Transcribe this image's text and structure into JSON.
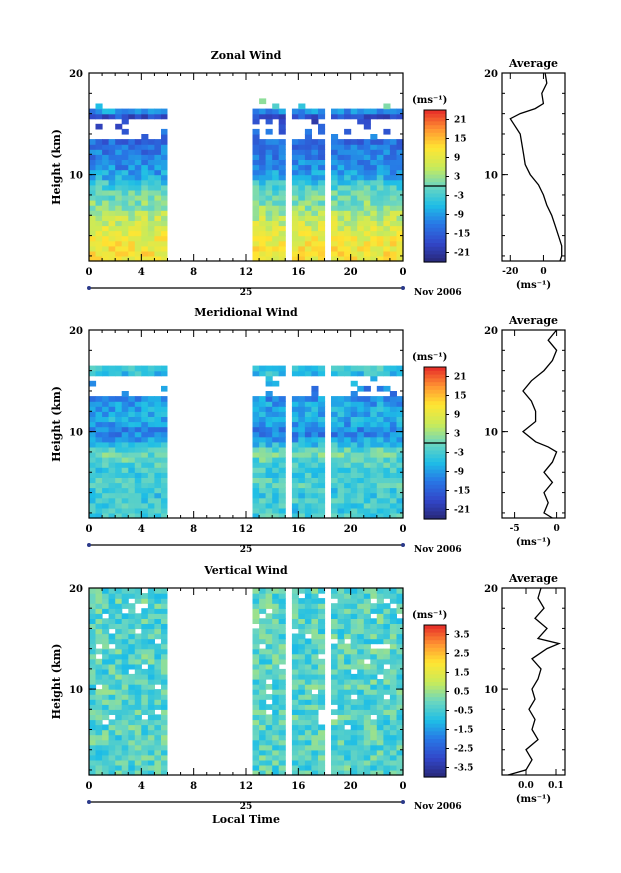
{
  "chart_data": [
    {
      "type": "heatmap",
      "title": "Zonal Wind",
      "ylabel": "Height (km)",
      "y_ticks": [
        "20",
        "10"
      ],
      "ylim": [
        1.5,
        20
      ],
      "x_ticks": [
        "0",
        "4",
        "8",
        "12",
        "16",
        "20",
        "0"
      ],
      "xlim": [
        0,
        24
      ],
      "date_label": "25",
      "month_label": "Nov 2006",
      "gaps_hours": [
        [
          6,
          12.3
        ],
        [
          15.2,
          15.5
        ],
        [
          18.1,
          18.4
        ]
      ],
      "data_top_km": 17.5,
      "colorbar": {
        "unit": "(ms⁻¹)",
        "ticks": [
          "21",
          "15",
          "9",
          "3",
          "-3",
          "-9",
          "-15",
          "-21"
        ],
        "range": [
          -24,
          24
        ],
        "zero_line": 0
      },
      "profile": {
        "title": "Average",
        "x_ticks": [
          "-20",
          "0"
        ],
        "xlim": [
          -25,
          13
        ],
        "unit": "(ms⁻¹)",
        "heights_km": [
          1.5,
          2,
          3,
          4,
          5,
          6,
          7,
          8,
          9,
          10,
          11,
          12,
          13,
          14,
          15,
          15.5,
          16,
          16.5,
          17,
          18,
          19,
          20
        ],
        "values": [
          10,
          11,
          11,
          9,
          7,
          5,
          2,
          0,
          -3,
          -8,
          -11,
          -12,
          -13,
          -14,
          -18,
          -20,
          -14,
          -5,
          0,
          -1,
          2,
          1
        ]
      }
    },
    {
      "type": "heatmap",
      "title": "Meridional Wind",
      "ylabel": "Height (km)",
      "y_ticks": [
        "20",
        "10"
      ],
      "ylim": [
        1.5,
        20
      ],
      "x_ticks": [
        "0",
        "4",
        "8",
        "12",
        "16",
        "20",
        "0"
      ],
      "xlim": [
        0,
        24
      ],
      "date_label": "25",
      "month_label": "Nov 2006",
      "gaps_hours": [
        [
          6,
          12.3
        ],
        [
          15.2,
          15.5
        ],
        [
          18.1,
          18.4
        ]
      ],
      "data_top_km": 16.5,
      "colorbar": {
        "unit": "(ms⁻¹)",
        "ticks": [
          "21",
          "15",
          "9",
          "3",
          "-3",
          "-9",
          "-15",
          "-21"
        ],
        "range": [
          -24,
          24
        ],
        "zero_line": 0
      },
      "profile": {
        "title": "Average",
        "x_ticks": [
          "-5",
          "0"
        ],
        "xlim": [
          -6.5,
          1
        ],
        "unit": "(ms⁻¹)",
        "heights_km": [
          1.5,
          2,
          3,
          4,
          5,
          6,
          7,
          8,
          8.5,
          9,
          10,
          11,
          12,
          13,
          14,
          15,
          16,
          17,
          18,
          19,
          20
        ],
        "values": [
          -0.5,
          -1.5,
          -1,
          -1.5,
          -0.5,
          -1.5,
          -0.5,
          0,
          -1,
          -2.5,
          -4,
          -2.5,
          -2.5,
          -3,
          -4,
          -3,
          -1.5,
          -0.5,
          0,
          -1,
          0
        ]
      }
    },
    {
      "type": "heatmap",
      "title": "Vertical Wind",
      "ylabel": "Height (km)",
      "xlabel": "Local Time",
      "y_ticks": [
        "20",
        "10"
      ],
      "ylim": [
        1.5,
        20
      ],
      "x_ticks": [
        "0",
        "4",
        "8",
        "12",
        "16",
        "20",
        "0"
      ],
      "xlim": [
        0,
        24
      ],
      "date_label": "25",
      "month_label": "Nov 2006",
      "gaps_hours": [
        [
          6,
          12.3
        ],
        [
          15.2,
          15.5
        ],
        [
          18.1,
          18.4
        ]
      ],
      "data_top_km": 20,
      "colorbar": {
        "unit": "(ms⁻¹)",
        "ticks": [
          "3.5",
          "2.5",
          "1.5",
          "0.5",
          "-0.5",
          "-1.5",
          "-2.5",
          "-3.5"
        ],
        "range": [
          -4,
          4
        ],
        "zero_line": null
      },
      "profile": {
        "title": "Average",
        "x_ticks": [
          "0.0",
          "0.1"
        ],
        "xlim": [
          -0.08,
          0.13
        ],
        "unit": "(ms⁻¹)",
        "heights_km": [
          1.5,
          2,
          3,
          4,
          5,
          6,
          7,
          8,
          9,
          10,
          11,
          12,
          13,
          14,
          14.5,
          15,
          16,
          17,
          18,
          19,
          20
        ],
        "values": [
          -0.06,
          0.0,
          0.02,
          0.0,
          0.04,
          0.02,
          0.03,
          0.01,
          0.03,
          0.02,
          0.04,
          0.05,
          0.02,
          0.07,
          0.11,
          0.04,
          0.07,
          0.03,
          0.06,
          0.04,
          0.05
        ]
      }
    }
  ]
}
